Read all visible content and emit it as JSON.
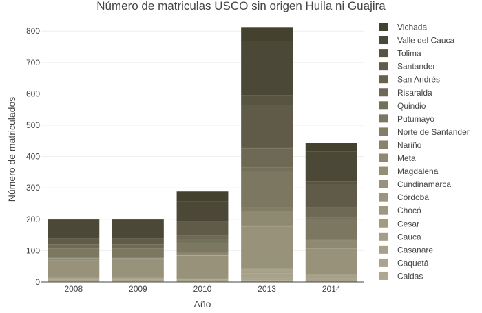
{
  "chart_data": {
    "type": "bar",
    "stacked": true,
    "title": "Número de matriculas USCO sin origen Huila ni Guajira",
    "xlabel": "Año",
    "ylabel": "Número de matriculados",
    "categories": [
      "2008",
      "2009",
      "2010",
      "2013",
      "2014"
    ],
    "ylim": [
      0,
      840
    ],
    "yticks": [
      0,
      100,
      200,
      300,
      400,
      500,
      600,
      700,
      800
    ],
    "grid": true,
    "legend_position": "right",
    "series": [
      {
        "name": "Caldas",
        "color": "#aca78e",
        "values": [
          2,
          2,
          2,
          5,
          4
        ]
      },
      {
        "name": "Caquetá",
        "color": "#a9a48b",
        "values": [
          6,
          6,
          6,
          12,
          8
        ]
      },
      {
        "name": "Casanare",
        "color": "#a6a188",
        "values": [
          2,
          2,
          2,
          10,
          4
        ]
      },
      {
        "name": "Cauca",
        "color": "#a39e85",
        "values": [
          2,
          2,
          1,
          8,
          4
        ]
      },
      {
        "name": "Cesar",
        "color": "#a09b82",
        "values": [
          0,
          1,
          0,
          2,
          2
        ]
      },
      {
        "name": "Chocó",
        "color": "#9d987f",
        "values": [
          1,
          0,
          0,
          3,
          2
        ]
      },
      {
        "name": "Córdoba",
        "color": "#9a957c",
        "values": [
          1,
          1,
          1,
          2,
          1
        ]
      },
      {
        "name": "Cundinamarca",
        "color": "#979279",
        "values": [
          55,
          57,
          72,
          135,
          82
        ]
      },
      {
        "name": "Magdalena",
        "color": "#938e75",
        "values": [
          1,
          0,
          1,
          4,
          1
        ]
      },
      {
        "name": "Meta",
        "color": "#8e8970",
        "values": [
          5,
          4,
          5,
          45,
          23
        ]
      },
      {
        "name": "Nariño",
        "color": "#88836b",
        "values": [
          1,
          1,
          1,
          1,
          1
        ]
      },
      {
        "name": "Norte de Santander",
        "color": "#827d66",
        "values": [
          2,
          2,
          2,
          12,
          3
        ]
      },
      {
        "name": "Putumayo",
        "color": "#7b7760",
        "values": [
          28,
          28,
          30,
          112,
          65
        ]
      },
      {
        "name": "Quindio",
        "color": "#74715a",
        "values": [
          3,
          3,
          14,
          15,
          6
        ]
      },
      {
        "name": "Risaralda",
        "color": "#6d6954",
        "values": [
          11,
          11,
          12,
          60,
          32
        ]
      },
      {
        "name": "San Andrés",
        "color": "#66624e",
        "values": [
          1,
          1,
          1,
          4,
          1
        ]
      },
      {
        "name": "Santander",
        "color": "#5f5b48",
        "values": [
          16,
          16,
          42,
          135,
          73
        ]
      },
      {
        "name": "Tolima",
        "color": "#585442",
        "values": [
          3,
          3,
          3,
          30,
          10
        ]
      },
      {
        "name": "Valle del Cauca",
        "color": "#4c4838",
        "values": [
          58,
          58,
          62,
          174,
          94
        ]
      },
      {
        "name": "Vichada",
        "color": "#45412f",
        "values": [
          2,
          2,
          32,
          44,
          27
        ]
      }
    ]
  }
}
